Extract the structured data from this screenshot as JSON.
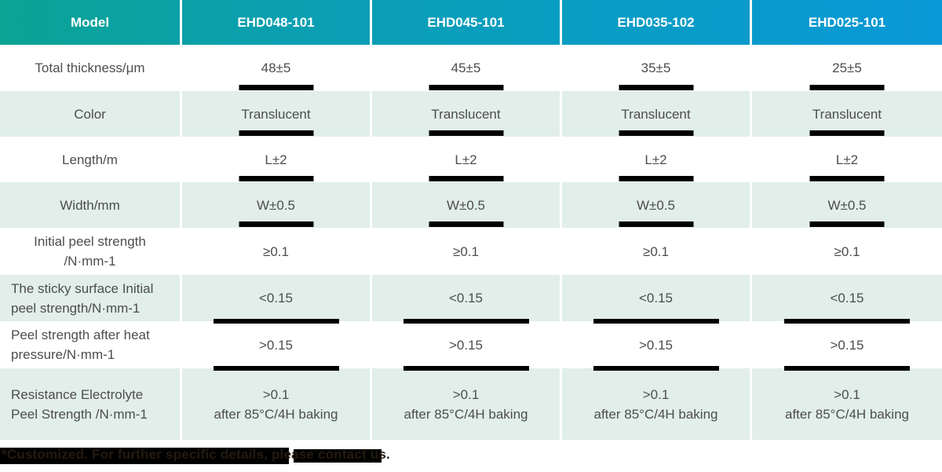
{
  "colors": {
    "header_gradient_start": "#0AA394",
    "header_gradient_end": "#0998D7",
    "row_shade": "#E1EEE9",
    "body_text": "#4D4D4D",
    "header_text": "#FFFFFF",
    "underline_bar": "#000000"
  },
  "table": {
    "header": {
      "model": "Model",
      "columns": [
        "EHD048-101",
        "EHD045-101",
        "EHD035-102",
        "EHD025-101"
      ]
    },
    "rows": [
      {
        "label": [
          "Total thickness/μm"
        ],
        "cells": [
          [
            "48±5"
          ],
          [
            "45±5"
          ],
          [
            "35±5"
          ],
          [
            "25±5"
          ]
        ],
        "shade": false,
        "bar": "narrow",
        "align": "center"
      },
      {
        "label": [
          "Color"
        ],
        "cells": [
          [
            "Translucent"
          ],
          [
            "Translucent"
          ],
          [
            "Translucent"
          ],
          [
            "Translucent"
          ]
        ],
        "shade": true,
        "bar": "narrow",
        "align": "center"
      },
      {
        "label": [
          "Length/m"
        ],
        "cells": [
          [
            "L±2"
          ],
          [
            "L±2"
          ],
          [
            "L±2"
          ],
          [
            "L±2"
          ]
        ],
        "shade": false,
        "bar": "narrow",
        "align": "center"
      },
      {
        "label": [
          "Width/mm"
        ],
        "cells": [
          [
            "W±0.5"
          ],
          [
            "W±0.5"
          ],
          [
            "W±0.5"
          ],
          [
            "W±0.5"
          ]
        ],
        "shade": true,
        "bar": "narrow",
        "align": "center"
      },
      {
        "label": [
          "Initial peel strength",
          "/N·mm-1"
        ],
        "cells": [
          [
            "≥0.1"
          ],
          [
            "≥0.1"
          ],
          [
            "≥0.1"
          ],
          [
            "≥0.1"
          ]
        ],
        "shade": false,
        "bar": "none",
        "align": "center"
      },
      {
        "label": [
          "The sticky surface Initial",
          "peel strength/N·mm-1"
        ],
        "cells": [
          [
            "<0.15"
          ],
          [
            "<0.15"
          ],
          [
            "<0.15"
          ],
          [
            "<0.15"
          ]
        ],
        "shade": true,
        "bar": "wide",
        "align": "left"
      },
      {
        "label": [
          "Peel strength after heat",
          "pressure/N·mm-1"
        ],
        "cells": [
          [
            ">0.15"
          ],
          [
            ">0.15"
          ],
          [
            ">0.15"
          ],
          [
            ">0.15"
          ]
        ],
        "shade": false,
        "bar": "wide",
        "align": "left"
      },
      {
        "label": [
          "Resistance Electrolyte",
          "Peel Strength /N·mm-1"
        ],
        "cells": [
          [
            ">0.1",
            "after 85°C/4H baking"
          ],
          [
            ">0.1",
            "after 85°C/4H baking"
          ],
          [
            ">0.1",
            "after 85°C/4H baking"
          ],
          [
            ">0.1",
            "after 85°C/4H baking"
          ]
        ],
        "shade": true,
        "bar": "none",
        "align": "left"
      }
    ]
  },
  "footnote": {
    "text": "*Customized. For further specific details, please contact us."
  }
}
